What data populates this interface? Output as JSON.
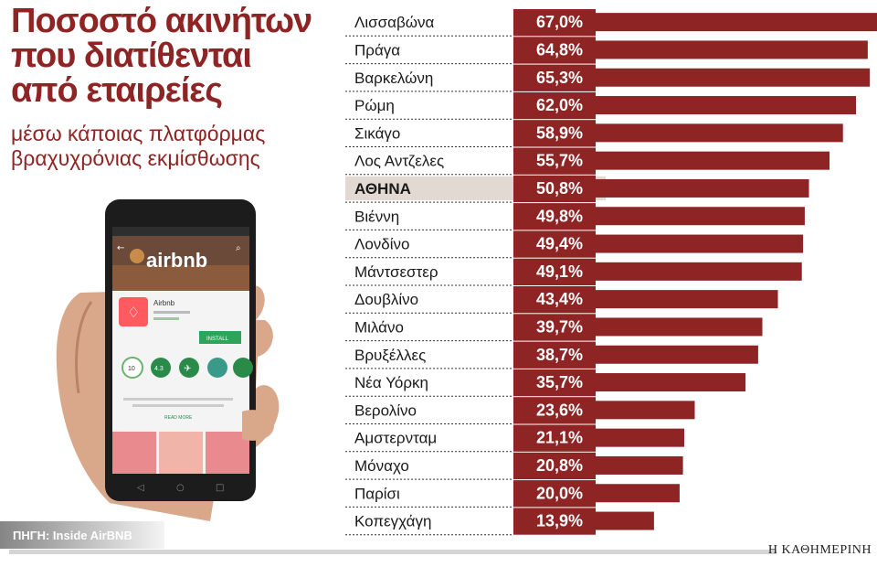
{
  "header": {
    "title": "Ποσοστό ακινήτων που διατίθενται από εταιρείες",
    "subtitle": "μέσω κάποιας πλατφόρμας βραχυχρόνιας εκμίσθωσης"
  },
  "photo": {
    "brand": "airbnb",
    "app_name": "Airbnb",
    "install_label": "INSTALL",
    "badge_value": "10",
    "rating": "4.3",
    "read_more": "READ MORE"
  },
  "footer": {
    "source": "ΠΗΓΗ: Inside AirBNB",
    "publisher": "Η ΚΑΘΗΜΕΡΙΝΗ"
  },
  "colors": {
    "bar": "#8e2424",
    "label_box": "#8e2424",
    "highlight": "#e2d9d2",
    "title": "#8e2424"
  },
  "chart_data": {
    "type": "bar",
    "orientation": "horizontal",
    "highlight": "ΑΘΗΝΑ",
    "value_suffix": "%",
    "categories": [
      "Λισσαβώνα",
      "Πράγα",
      "Βαρκελώνη",
      "Ρώμη",
      "Σικάγο",
      "Λος Αντζελες",
      "ΑΘΗΝΑ",
      "Βιέννη",
      "Λονδίνο",
      "Μάντσεστερ",
      "Δουβλίνο",
      "Μιλάνο",
      "Βρυξέλλες",
      "Νέα Υόρκη",
      "Βερολίνο",
      "Αμστερνταμ",
      "Μόναχο",
      "Παρίσι",
      "Κοπεγχάγη"
    ],
    "values": [
      67.0,
      64.8,
      65.3,
      62.0,
      58.9,
      55.7,
      50.8,
      49.8,
      49.4,
      49.1,
      43.4,
      39.7,
      38.7,
      35.7,
      23.6,
      21.1,
      20.8,
      20.0,
      13.9
    ],
    "value_labels": [
      "67,0%",
      "64,8%",
      "65,3%",
      "62,0%",
      "58,9%",
      "55,7%",
      "50,8%",
      "49,8%",
      "49,4%",
      "49,1%",
      "43,4%",
      "39,7%",
      "38,7%",
      "35,7%",
      "23,6%",
      "21,1%",
      "20,8%",
      "20,0%",
      "13,9%"
    ],
    "xlim": [
      0,
      67
    ],
    "grid": false,
    "legend": "none"
  }
}
